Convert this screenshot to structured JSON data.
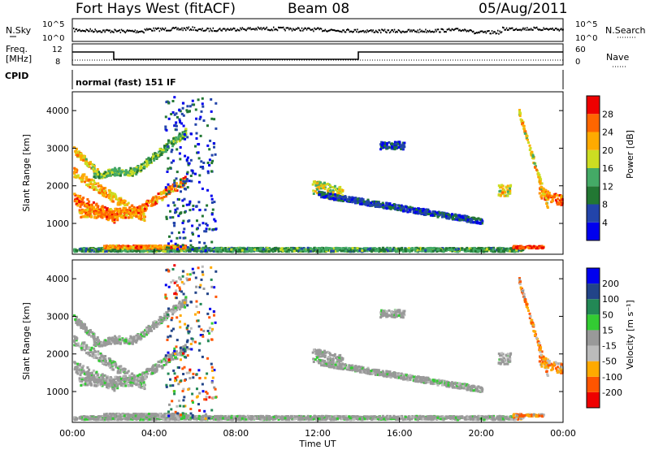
{
  "header": {
    "station": "Fort Hays West (fitACF)",
    "beam": "Beam 08",
    "date": "05/Aug/2011"
  },
  "strip_labels": {
    "nsky": "N.Sky",
    "nsky_top": "10^5",
    "nsky_bottom": "10^0",
    "nsearch": "N.Search",
    "nsearch_top": "10^5",
    "nsearch_bottom": "10^0",
    "freq": "Freq.",
    "freq_unit": "[MHz]",
    "freq_top": "12",
    "freq_bottom": "8",
    "nave": "Nave",
    "nave_top": "60",
    "nave_bottom": "0",
    "cpid": "CPID",
    "cpid_text": "normal (fast) 151 IF"
  },
  "colors": {
    "power": [
      "#0000ee",
      "#2244aa",
      "#227733",
      "#44aa66",
      "#ccdd22",
      "#ffaa00",
      "#ff6600",
      "#ee0000"
    ],
    "velocity": [
      "#ee0000",
      "#ff5500",
      "#ffaa00",
      "#bbbbbb",
      "#999999",
      "#33cc33",
      "#228855",
      "#224488",
      "#0000ee"
    ]
  },
  "chart_data": [
    {
      "type": "heatmap",
      "ylabel": "Slant Range [km]",
      "y_ticks": [
        "1000",
        "2000",
        "3000",
        "4000"
      ],
      "ylim": [
        180,
        4500
      ],
      "colorbar_label": "Power [dB]",
      "colorbar_ticks": [
        "4",
        "8",
        "12",
        "16",
        "20",
        "24",
        "28"
      ],
      "colorbar_range": [
        0,
        30
      ]
    },
    {
      "type": "heatmap",
      "ylabel": "Slant Range [km]",
      "y_ticks": [
        "1000",
        "2000",
        "3000",
        "4000"
      ],
      "ylim": [
        180,
        4500
      ],
      "xlabel": "Time UT",
      "x_ticks": [
        "00:00",
        "04:00",
        "08:00",
        "12:00",
        "16:00",
        "20:00",
        "00:00"
      ],
      "colorbar_label": "Velocity [m s⁻¹]",
      "colorbar_ticks": [
        "200",
        "100",
        "50",
        "15",
        "-15",
        "-50",
        "-100",
        "-200"
      ],
      "colorbar_range": [
        -250,
        250
      ]
    }
  ]
}
